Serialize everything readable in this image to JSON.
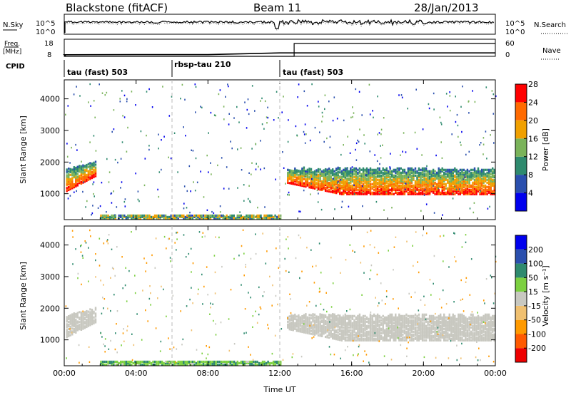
{
  "header": {
    "station": "Blackstone (fitACF)",
    "beam": "Beam 11",
    "date": "28/Jan/2013"
  },
  "noise_panel": {
    "left_label": "N.Sky",
    "right_label": "N.Search",
    "left_ticks": [
      "10^5",
      "10^0"
    ],
    "right_ticks": [
      "10^5",
      "10^0"
    ]
  },
  "freq_panel": {
    "label_line1": "Freq.",
    "label_line2": "[MHz]",
    "left_ticks": [
      "18",
      "8"
    ],
    "right_ticks": [
      "60",
      "0"
    ],
    "right_label": "Nave"
  },
  "cpid": {
    "label": "CPID",
    "segments": [
      {
        "name": "tau (fast) 503",
        "start_hour": 0
      },
      {
        "name": "rbsp-tau 210",
        "start_hour": 6
      },
      {
        "name": "tau (fast) 503",
        "start_hour": 12
      }
    ]
  },
  "power_colorbar": {
    "label": "Power [dB]",
    "ticks": [
      "4",
      "8",
      "12",
      "16",
      "20",
      "24",
      "28"
    ],
    "colors": [
      "#0000ee",
      "#2a4fae",
      "#2e8a6e",
      "#7ab35a",
      "#f0a000",
      "#ff6a00",
      "#ff0000"
    ]
  },
  "velocity_colorbar": {
    "label": "Velocity [m s⁻¹]",
    "ticks": [
      "-200",
      "-100",
      "-50",
      "-15",
      "15",
      "50",
      "100",
      "200"
    ],
    "colors": [
      "#ee0000",
      "#ff5a00",
      "#ff9a00",
      "#f0c070",
      "#c8c8c0",
      "#7cd040",
      "#2e8a6e",
      "#2a4fae",
      "#0000ee"
    ]
  },
  "chart_data": [
    {
      "type": "heatmap",
      "title": "",
      "xlabel": "Time UT",
      "ylabel": "Slant Range [km]",
      "xlim": [
        0,
        24
      ],
      "ylim": [
        180,
        4600
      ],
      "x_tick_labels": [
        "00:00",
        "04:00",
        "08:00",
        "12:00",
        "16:00",
        "20:00",
        "00:00"
      ],
      "y_tick_labels": [
        "1000",
        "2000",
        "3000",
        "4000"
      ],
      "quantity": "Power [dB]",
      "bands": [
        {
          "t_start": 0.1,
          "t_end": 1.8,
          "range_low": 1050,
          "range_high": 2000,
          "value": 18
        },
        {
          "t_start": 12.4,
          "t_end": 24.0,
          "range_low": 950,
          "range_high": 1800,
          "value": 18
        },
        {
          "t_start": 2.0,
          "t_end": 12.0,
          "range_low": 180,
          "range_high": 300,
          "value": 10
        }
      ]
    },
    {
      "type": "heatmap",
      "title": "",
      "xlabel": "Time UT",
      "ylabel": "Slant Range [km]",
      "xlim": [
        0,
        24
      ],
      "ylim": [
        180,
        4600
      ],
      "x_tick_labels": [
        "00:00",
        "04:00",
        "08:00",
        "12:00",
        "16:00",
        "20:00",
        "00:00"
      ],
      "y_tick_labels": [
        "1000",
        "2000",
        "3000",
        "4000"
      ],
      "quantity": "Velocity [m s⁻¹]",
      "bands": [
        {
          "t_start": 0.1,
          "t_end": 1.8,
          "range_low": 1050,
          "range_high": 2000,
          "value": 0
        },
        {
          "t_start": 12.4,
          "t_end": 24.0,
          "range_low": 950,
          "range_high": 1800,
          "value": 0
        },
        {
          "t_start": 2.0,
          "t_end": 12.0,
          "range_low": 180,
          "range_high": 300,
          "value": 40
        }
      ]
    }
  ],
  "time_series": {
    "x_hours": [
      0,
      4,
      8,
      12,
      12.8,
      16,
      20,
      24
    ],
    "frequency_mhz": [
      8.9,
      9.0,
      9.0,
      10.0,
      10.0,
      10.0,
      10.0,
      10.0
    ],
    "nave": [
      0,
      0,
      0,
      0,
      45,
      45,
      45,
      45
    ]
  }
}
